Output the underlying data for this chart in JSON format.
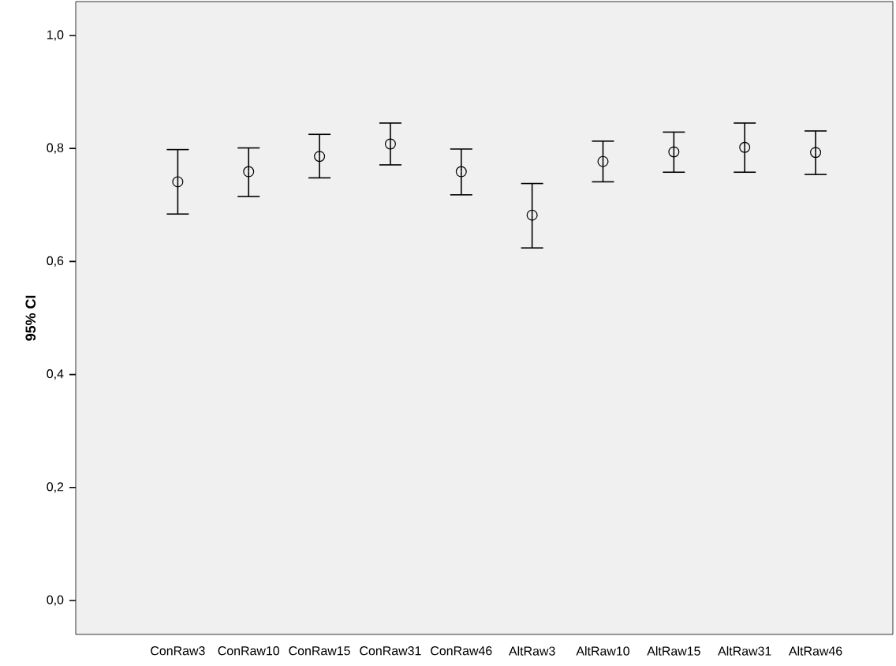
{
  "chart_data": {
    "type": "scatter",
    "ylabel": "95% CI",
    "categories": [
      "ConRaw3",
      "ConRaw10",
      "ConRaw15",
      "ConRaw31",
      "ConRaw46",
      "AltRaw3",
      "AltRaw10",
      "AltRaw15",
      "AltRaw31",
      "AltRaw46"
    ],
    "series": [
      {
        "color": "#000000",
        "values": [
          0.741,
          0.759,
          0.786,
          0.808,
          0.759,
          0.682,
          0.777,
          0.794,
          0.802,
          0.793
        ],
        "errors": [
          [
            0.684,
            0.798
          ],
          [
            0.715,
            0.801
          ],
          [
            0.748,
            0.825
          ],
          [
            0.771,
            0.845
          ],
          [
            0.718,
            0.799
          ],
          [
            0.624,
            0.738
          ],
          [
            0.741,
            0.813
          ],
          [
            0.758,
            0.829
          ],
          [
            0.758,
            0.845
          ],
          [
            0.754,
            0.831
          ]
        ]
      }
    ],
    "marker": "circle",
    "grid": false,
    "ylim": [
      -0.06,
      1.06
    ],
    "yticks": [
      {
        "value": 0.0,
        "label": "0,0"
      },
      {
        "value": 0.2,
        "label": "0,2"
      },
      {
        "value": 0.4,
        "label": "0,4"
      },
      {
        "value": 0.6,
        "label": "0,6"
      },
      {
        "value": 0.8,
        "label": "0,8"
      },
      {
        "value": 1.0,
        "label": "1,0"
      }
    ]
  }
}
